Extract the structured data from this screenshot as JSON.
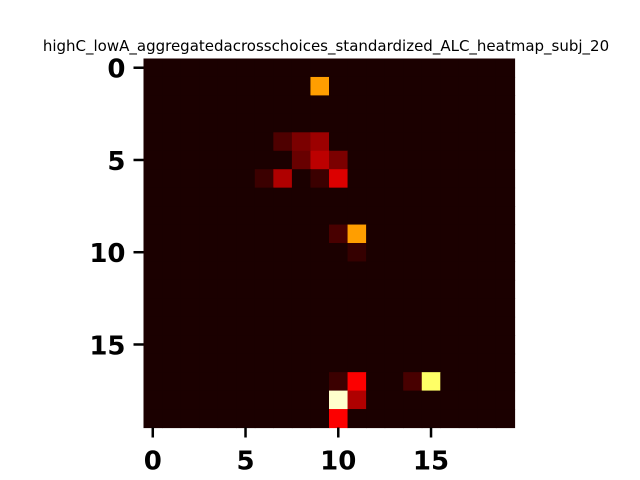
{
  "chart_data": {
    "type": "heatmap",
    "title": "highC_lowA_aggregatedacrosschoices_standardized_ALC_heatmap_subj_20",
    "colormap": "hot",
    "vmin": 0,
    "vmax": 1,
    "n_rows": 20,
    "n_cols": 20,
    "x_ticks": [
      "0",
      "5",
      "10",
      "15"
    ],
    "y_ticks": [
      "0",
      "5",
      "10",
      "15"
    ],
    "xlabel": "",
    "ylabel": "",
    "nonzero_cells": [
      {
        "row": 1,
        "col": 9,
        "value": 0.6
      },
      {
        "row": 4,
        "col": 7,
        "value": 0.08
      },
      {
        "row": 4,
        "col": 8,
        "value": 0.15
      },
      {
        "row": 4,
        "col": 9,
        "value": 0.2
      },
      {
        "row": 5,
        "col": 8,
        "value": 0.12
      },
      {
        "row": 5,
        "col": 9,
        "value": 0.25
      },
      {
        "row": 5,
        "col": 10,
        "value": 0.15
      },
      {
        "row": 6,
        "col": 6,
        "value": 0.05
      },
      {
        "row": 6,
        "col": 7,
        "value": 0.23
      },
      {
        "row": 6,
        "col": 9,
        "value": 0.05
      },
      {
        "row": 6,
        "col": 10,
        "value": 0.3
      },
      {
        "row": 9,
        "col": 10,
        "value": 0.07
      },
      {
        "row": 9,
        "col": 11,
        "value": 0.6
      },
      {
        "row": 10,
        "col": 11,
        "value": 0.04
      },
      {
        "row": 17,
        "col": 10,
        "value": 0.05
      },
      {
        "row": 17,
        "col": 11,
        "value": 0.35
      },
      {
        "row": 17,
        "col": 14,
        "value": 0.07
      },
      {
        "row": 17,
        "col": 15,
        "value": 0.85
      },
      {
        "row": 18,
        "col": 10,
        "value": 0.95
      },
      {
        "row": 18,
        "col": 11,
        "value": 0.23
      },
      {
        "row": 19,
        "col": 10,
        "value": 0.35
      }
    ]
  }
}
